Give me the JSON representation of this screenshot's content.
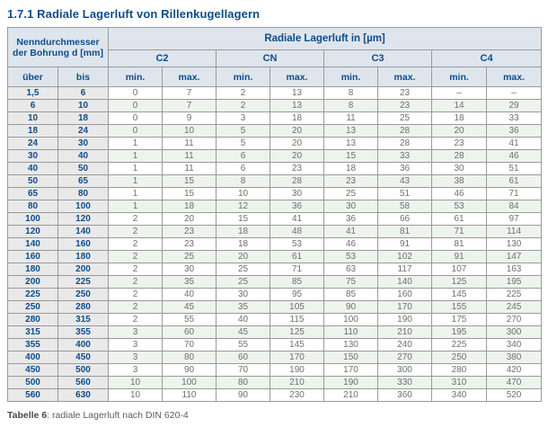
{
  "title": "1.7.1 Radiale Lagerluft von Rillenkugellagern",
  "table": {
    "row_group_header_line1": "Nenndurchmesser",
    "row_group_header_line2": "der Bohrung d [mm]",
    "col_group_header": "Radiale Lagerluft in [µm]",
    "groups": [
      "C2",
      "CN",
      "C3",
      "C4"
    ],
    "sub_headers": [
      "über",
      "bis",
      "min.",
      "max.",
      "min.",
      "max.",
      "min.",
      "max.",
      "min.",
      "max."
    ],
    "rows": [
      [
        "1,5",
        "6",
        "0",
        "7",
        "2",
        "13",
        "8",
        "23",
        "–",
        "–"
      ],
      [
        "6",
        "10",
        "0",
        "7",
        "2",
        "13",
        "8",
        "23",
        "14",
        "29"
      ],
      [
        "10",
        "18",
        "0",
        "9",
        "3",
        "18",
        "11",
        "25",
        "18",
        "33"
      ],
      [
        "18",
        "24",
        "0",
        "10",
        "5",
        "20",
        "13",
        "28",
        "20",
        "36"
      ],
      [
        "24",
        "30",
        "1",
        "11",
        "5",
        "20",
        "13",
        "28",
        "23",
        "41"
      ],
      [
        "30",
        "40",
        "1",
        "11",
        "6",
        "20",
        "15",
        "33",
        "28",
        "46"
      ],
      [
        "40",
        "50",
        "1",
        "11",
        "6",
        "23",
        "18",
        "36",
        "30",
        "51"
      ],
      [
        "50",
        "65",
        "1",
        "15",
        "8",
        "28",
        "23",
        "43",
        "38",
        "61"
      ],
      [
        "65",
        "80",
        "1",
        "15",
        "10",
        "30",
        "25",
        "51",
        "46",
        "71"
      ],
      [
        "80",
        "100",
        "1",
        "18",
        "12",
        "36",
        "30",
        "58",
        "53",
        "84"
      ],
      [
        "100",
        "120",
        "2",
        "20",
        "15",
        "41",
        "36",
        "66",
        "61",
        "97"
      ],
      [
        "120",
        "140",
        "2",
        "23",
        "18",
        "48",
        "41",
        "81",
        "71",
        "114"
      ],
      [
        "140",
        "160",
        "2",
        "23",
        "18",
        "53",
        "46",
        "91",
        "81",
        "130"
      ],
      [
        "160",
        "180",
        "2",
        "25",
        "20",
        "61",
        "53",
        "102",
        "91",
        "147"
      ],
      [
        "180",
        "200",
        "2",
        "30",
        "25",
        "71",
        "63",
        "117",
        "107",
        "163"
      ],
      [
        "200",
        "225",
        "2",
        "35",
        "25",
        "85",
        "75",
        "140",
        "125",
        "195"
      ],
      [
        "225",
        "250",
        "2",
        "40",
        "30",
        "95",
        "85",
        "160",
        "145",
        "225"
      ],
      [
        "250",
        "280",
        "2",
        "45",
        "35",
        "105",
        "90",
        "170",
        "155",
        "245"
      ],
      [
        "280",
        "315",
        "2",
        "55",
        "40",
        "115",
        "100",
        "190",
        "175",
        "270"
      ],
      [
        "315",
        "355",
        "3",
        "60",
        "45",
        "125",
        "110",
        "210",
        "195",
        "300"
      ],
      [
        "355",
        "400",
        "3",
        "70",
        "55",
        "145",
        "130",
        "240",
        "225",
        "340"
      ],
      [
        "400",
        "450",
        "3",
        "80",
        "60",
        "170",
        "150",
        "270",
        "250",
        "380"
      ],
      [
        "450",
        "500",
        "3",
        "90",
        "70",
        "190",
        "170",
        "300",
        "280",
        "420"
      ],
      [
        "500",
        "560",
        "10",
        "100",
        "80",
        "210",
        "190",
        "330",
        "310",
        "470"
      ],
      [
        "560",
        "630",
        "10",
        "110",
        "90",
        "230",
        "210",
        "360",
        "340",
        "520"
      ]
    ]
  },
  "caption": {
    "label": "Tabelle 6",
    "text": ": radiale Lagerluft nach DIN 620-4"
  },
  "colors": {
    "title_blue": "#0c4d8c",
    "header_bg": "#dfe5ec",
    "range_col_bg": "#e9e9e9",
    "alt_row_bg": "#ecf4ec",
    "border_gray": "#9a9a9a",
    "value_text": "#6f6f6f"
  }
}
